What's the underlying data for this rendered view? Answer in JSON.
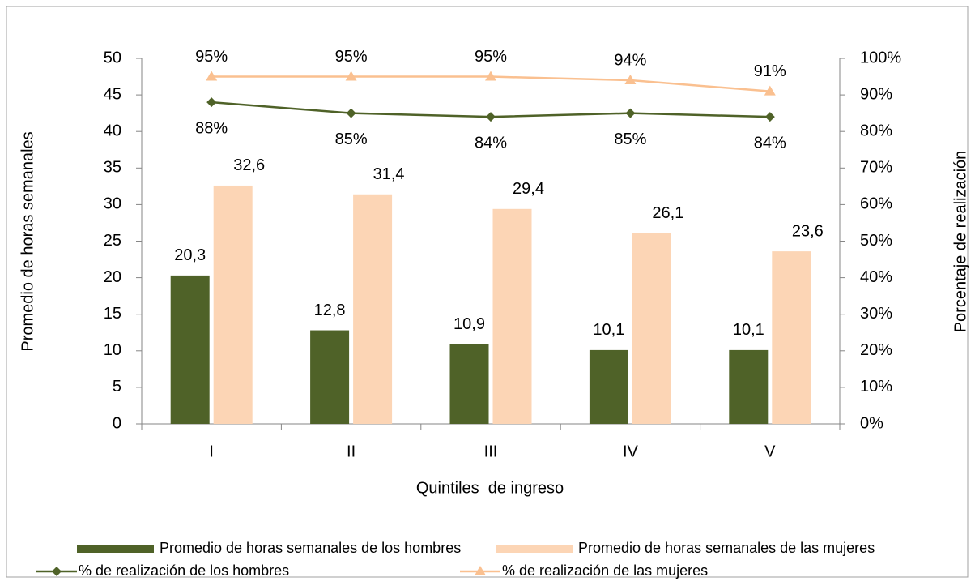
{
  "chart_data": {
    "type": "bar",
    "categories": [
      "I",
      "II",
      "III",
      "IV",
      "V"
    ],
    "xlabel": "Quintiles  de ingreso",
    "ylabel": "Promedio de horas semanales",
    "y2label": "Porcentaje de realización",
    "ylim": [
      0,
      50
    ],
    "yticks": [
      0,
      5,
      10,
      15,
      20,
      25,
      30,
      35,
      40,
      45,
      50
    ],
    "y2lim": [
      0,
      100
    ],
    "y2ticks": [
      {
        "value": 0,
        "label": "0%"
      },
      {
        "value": 10,
        "label": "10%"
      },
      {
        "value": 20,
        "label": "20%"
      },
      {
        "value": 30,
        "label": "30%"
      },
      {
        "value": 40,
        "label": "40%"
      },
      {
        "value": 50,
        "label": "50%"
      },
      {
        "value": 60,
        "label": "60%"
      },
      {
        "value": 70,
        "label": "70%"
      },
      {
        "value": 80,
        "label": "80%"
      },
      {
        "value": 90,
        "label": "90%"
      },
      {
        "value": 100,
        "label": "100%"
      }
    ],
    "series": [
      {
        "name": "Promedio de horas semanales de los hombres",
        "type": "bar",
        "color": "#4f6228",
        "values": [
          20.3,
          12.8,
          10.9,
          10.1,
          10.1
        ],
        "value_labels": [
          "20,3",
          "12,8",
          "10,9",
          "10,1",
          "10,1"
        ]
      },
      {
        "name": "Promedio de horas semanales de las mujeres",
        "type": "bar",
        "color": "#fcd5b5",
        "values": [
          32.6,
          31.4,
          29.4,
          26.1,
          23.6
        ],
        "value_labels": [
          "32,6",
          "31,4",
          "29,4",
          "26,1",
          "23,6"
        ]
      },
      {
        "name": "% de realización de los hombres",
        "type": "line",
        "axis": "y2",
        "marker": "diamond",
        "color": "#4f6228",
        "values": [
          88,
          85,
          84,
          85,
          84
        ],
        "value_labels": [
          "88%",
          "85%",
          "84%",
          "85%",
          "84%"
        ]
      },
      {
        "name": "% de realización de las mujeres",
        "type": "line",
        "axis": "y2",
        "marker": "triangle",
        "color": "#fac090",
        "values": [
          95,
          95,
          95,
          94,
          91
        ],
        "value_labels": [
          "95%",
          "95%",
          "95%",
          "94%",
          "91%"
        ]
      }
    ]
  }
}
